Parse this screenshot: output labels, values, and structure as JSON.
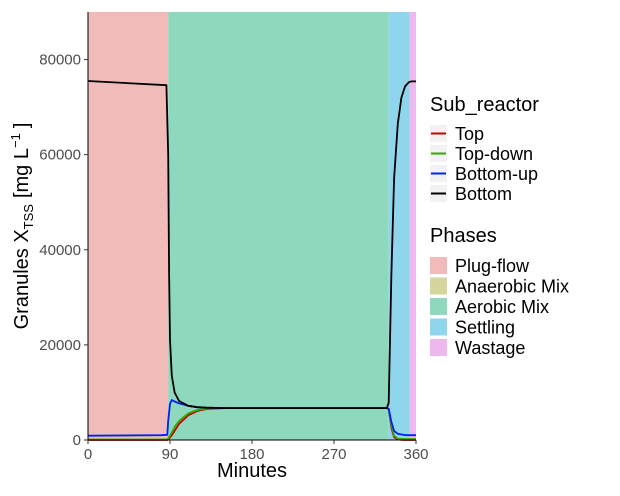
{
  "chart_data": {
    "type": "line",
    "xlabel": "Minutes",
    "ylabel_main": "Granules X",
    "ylabel_sub": "TSS",
    "ylabel_unit_open": "[mg L",
    "ylabel_unit_exp": "−1",
    "ylabel_unit_close": "]",
    "xlim": [
      0,
      360
    ],
    "ylim": [
      0,
      90000
    ],
    "x_ticks": [
      0,
      90,
      180,
      270,
      360
    ],
    "x_tick_labels": [
      "0",
      "90",
      "180",
      "270",
      "360"
    ],
    "y_ticks": [
      0,
      20000,
      40000,
      60000,
      80000
    ],
    "y_tick_labels": [
      "0",
      "20000",
      "40000",
      "60000",
      "80000"
    ],
    "phases": [
      {
        "name": "Plug-flow",
        "start": 0,
        "end": 88,
        "color": "#F0BBB9"
      },
      {
        "name": "Anaerobic Mix",
        "start": 88,
        "end": 88,
        "color": "#D4D69B"
      },
      {
        "name": "Aerobic Mix",
        "start": 88,
        "end": 330,
        "color": "#8ED8BE"
      },
      {
        "name": "Settling",
        "start": 330,
        "end": 353,
        "color": "#8FD5EC"
      },
      {
        "name": "Wastage",
        "start": 353,
        "end": 360,
        "color": "#EDB8EE"
      }
    ],
    "series": [
      {
        "name": "Top",
        "color": "#CC0000",
        "x": [
          0,
          80,
          87,
          89,
          92,
          96,
          100,
          110,
          120,
          130,
          150,
          200,
          250,
          300,
          328,
          330,
          333,
          336,
          340,
          346,
          350,
          355,
          360
        ],
        "y": [
          0,
          0,
          0,
          300,
          1000,
          2200,
          3400,
          5200,
          6100,
          6500,
          6700,
          6700,
          6700,
          6700,
          6700,
          6500,
          2500,
          600,
          100,
          0,
          0,
          0,
          0
        ]
      },
      {
        "name": "Top-down",
        "color": "#33AA00",
        "x": [
          0,
          80,
          87,
          89,
          92,
          96,
          100,
          110,
          120,
          130,
          150,
          200,
          250,
          300,
          328,
          330,
          333,
          336,
          340,
          346,
          350,
          355,
          360
        ],
        "y": [
          100,
          100,
          100,
          600,
          1600,
          3000,
          4000,
          5600,
          6300,
          6600,
          6700,
          6700,
          6700,
          6700,
          6700,
          6500,
          3000,
          900,
          300,
          200,
          200,
          200,
          200
        ]
      },
      {
        "name": "Bottom-up",
        "color": "#0022EE",
        "x": [
          0,
          80,
          87,
          88,
          90,
          92,
          95,
          100,
          110,
          120,
          130,
          150,
          200,
          250,
          300,
          328,
          330,
          333,
          336,
          340,
          346,
          350,
          355,
          360
        ],
        "y": [
          900,
          1000,
          1100,
          4000,
          7600,
          8400,
          8100,
          7700,
          7200,
          6900,
          6800,
          6700,
          6700,
          6700,
          6700,
          6700,
          6600,
          3800,
          1900,
          1300,
          1100,
          1000,
          1000,
          1000
        ]
      },
      {
        "name": "Bottom",
        "color": "#000000",
        "x": [
          0,
          86,
          88,
          89,
          90,
          92,
          95,
          100,
          110,
          120,
          130,
          150,
          200,
          250,
          300,
          328,
          330,
          333,
          336,
          340,
          344,
          348,
          352,
          355,
          360
        ],
        "y": [
          75500,
          74600,
          60000,
          35000,
          21000,
          13500,
          10000,
          8200,
          7200,
          6900,
          6800,
          6700,
          6700,
          6700,
          6700,
          6700,
          7800,
          35000,
          55000,
          66500,
          72000,
          74400,
          75200,
          75400,
          75400
        ]
      }
    ]
  },
  "legend": {
    "sub_reactor_title": "Sub_reactor",
    "phases_title": "Phases"
  }
}
